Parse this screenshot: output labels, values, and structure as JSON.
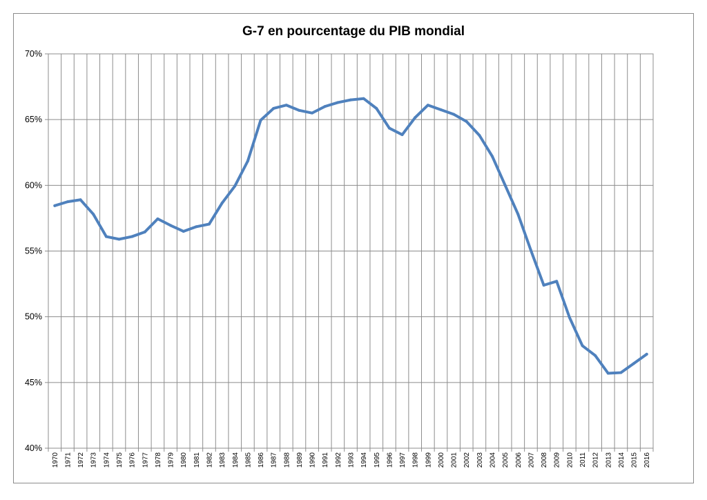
{
  "chart_data": {
    "type": "line",
    "title": "G-7 en pourcentage du PIB mondial",
    "xlabel": "",
    "ylabel": "",
    "ylim": [
      40,
      70
    ],
    "y_ticks": [
      "40%",
      "45%",
      "50%",
      "55%",
      "60%",
      "65%",
      "70%"
    ],
    "y_tick_values": [
      40,
      45,
      50,
      55,
      60,
      65,
      70
    ],
    "grid": true,
    "legend": "none",
    "line_color": "#4f81bd",
    "categories": [
      "1970",
      "1971",
      "1972",
      "1973",
      "1974",
      "1975",
      "1976",
      "1977",
      "1978",
      "1979",
      "1980",
      "1981",
      "1982",
      "1983",
      "1984",
      "1985",
      "1986",
      "1987",
      "1988",
      "1989",
      "1990",
      "1991",
      "1992",
      "1993",
      "1994",
      "1995",
      "1996",
      "1997",
      "1998",
      "1999",
      "2000",
      "2001",
      "2002",
      "2003",
      "2004",
      "2005",
      "2006",
      "2007",
      "2008",
      "2009",
      "2010",
      "2011",
      "2012",
      "2013",
      "2014",
      "2015",
      "2016"
    ],
    "values": [
      58.45,
      58.75,
      58.9,
      57.8,
      56.1,
      55.9,
      56.1,
      56.45,
      57.45,
      56.95,
      56.5,
      56.85,
      57.05,
      58.65,
      59.95,
      61.85,
      64.95,
      65.85,
      66.1,
      65.7,
      65.5,
      66.0,
      66.3,
      66.5,
      66.6,
      65.85,
      64.35,
      63.85,
      65.15,
      66.1,
      65.75,
      65.4,
      64.85,
      63.8,
      62.2,
      60.0,
      57.8,
      55.05,
      52.4,
      52.7,
      49.95,
      47.8,
      47.05,
      45.7,
      45.75,
      46.45,
      47.15
    ]
  }
}
